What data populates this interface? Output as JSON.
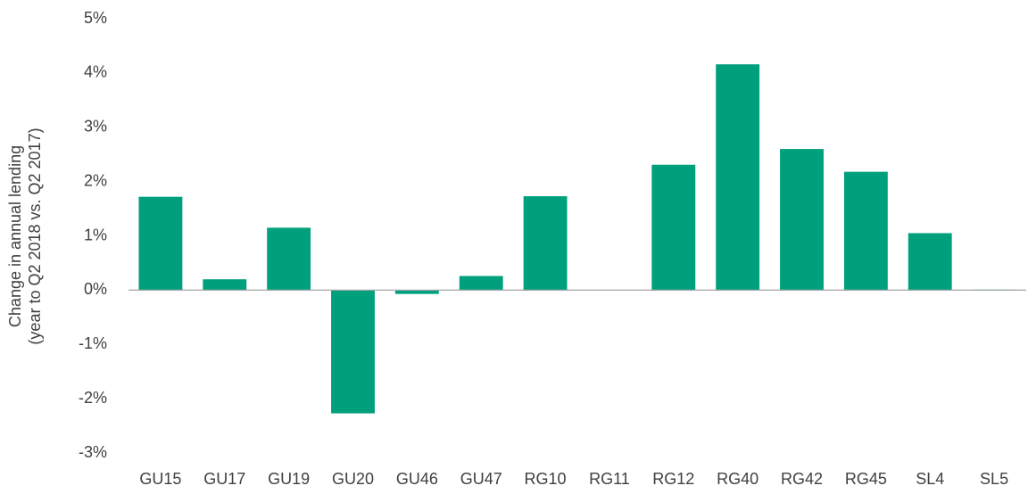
{
  "chart_data": {
    "type": "bar",
    "y_label": [
      "Change in annual lending",
      "(year to Q2 2018 vs. Q2 2017)"
    ],
    "categories": [
      "GU15",
      "GU17",
      "GU19",
      "GU20",
      "GU46",
      "GU47",
      "RG10",
      "RG11",
      "RG12",
      "RG40",
      "RG42",
      "RG45",
      "SL4",
      "SL5"
    ],
    "values": [
      1.72,
      0.2,
      1.15,
      -2.27,
      -0.07,
      0.26,
      1.73,
      0,
      2.31,
      4.16,
      2.6,
      2.18,
      1.05,
      0.01
    ],
    "color": "#00a07c",
    "ylim": [
      -3,
      5
    ],
    "yticks": [
      {
        "value": -3,
        "label": "-3%"
      },
      {
        "value": -2,
        "label": "-2%"
      },
      {
        "value": -1,
        "label": "-1%"
      },
      {
        "value": 0,
        "label": "0%"
      },
      {
        "value": 1,
        "label": "1%"
      },
      {
        "value": 2,
        "label": "2%"
      },
      {
        "value": 3,
        "label": "3%"
      },
      {
        "value": 4,
        "label": "4%"
      },
      {
        "value": 5,
        "label": "5%"
      }
    ],
    "grid": false
  }
}
